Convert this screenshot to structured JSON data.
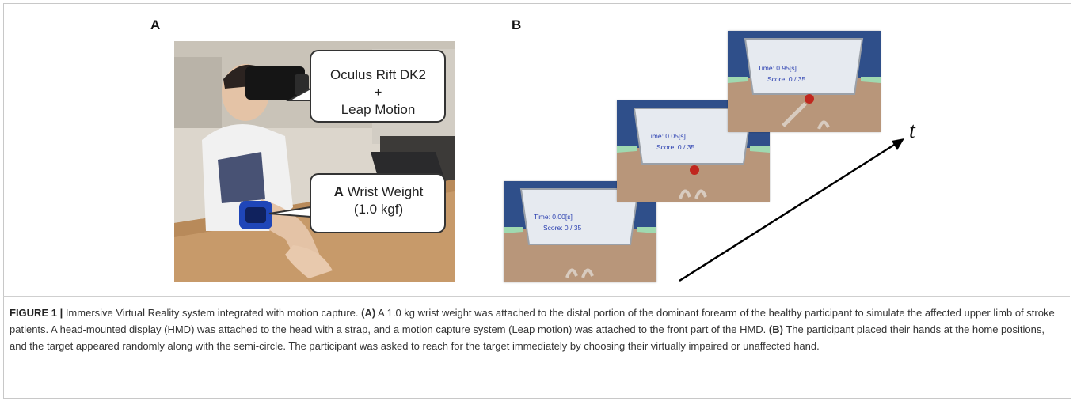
{
  "panels": {
    "a_label": "A",
    "b_label": "B"
  },
  "callouts": {
    "device_line1": "Oculus Rift DK2",
    "device_line2": "+",
    "device_line3": "Leap Motion",
    "weight_letter": "A",
    "weight_line1": " Wrist Weight",
    "weight_line2": "(1.0 kgf)"
  },
  "vr_screens": [
    {
      "time": "Time: 0.00[s]",
      "score": "Score: 0 / 35"
    },
    {
      "time": "Time: 0.05[s]",
      "score": "Score: 0 / 35"
    },
    {
      "time": "Time: 0.95[s]",
      "score": "Score: 0 / 35"
    }
  ],
  "time_axis_label": "t",
  "caption": {
    "figure_number": "FIGURE 1 |",
    "title": " Immersive Virtual Reality system integrated with motion capture. ",
    "a_marker": "(A)",
    "a_text": " A 1.0 kg wrist weight was attached to the distal portion of the dominant forearm of the healthy participant to simulate the affected upper limb of stroke patients. A head-mounted display (HMD) was attached to the head with a strap, and a motion capture system (Leap motion) was attached to the front part of the HMD. ",
    "b_marker": "(B)",
    "b_text": " The participant placed their hands at the home positions, and the target appeared randomly along with the semi-circle. The participant was asked to reach for the target immediately by choosing their virtually impaired or unaffected hand."
  },
  "colors": {
    "vr_sky": "#2f4f8a",
    "vr_floor": "#b8967a",
    "vr_panel": "#e6eaf0",
    "vr_target": "#c0271e",
    "hud_text": "#2a3fb0"
  }
}
